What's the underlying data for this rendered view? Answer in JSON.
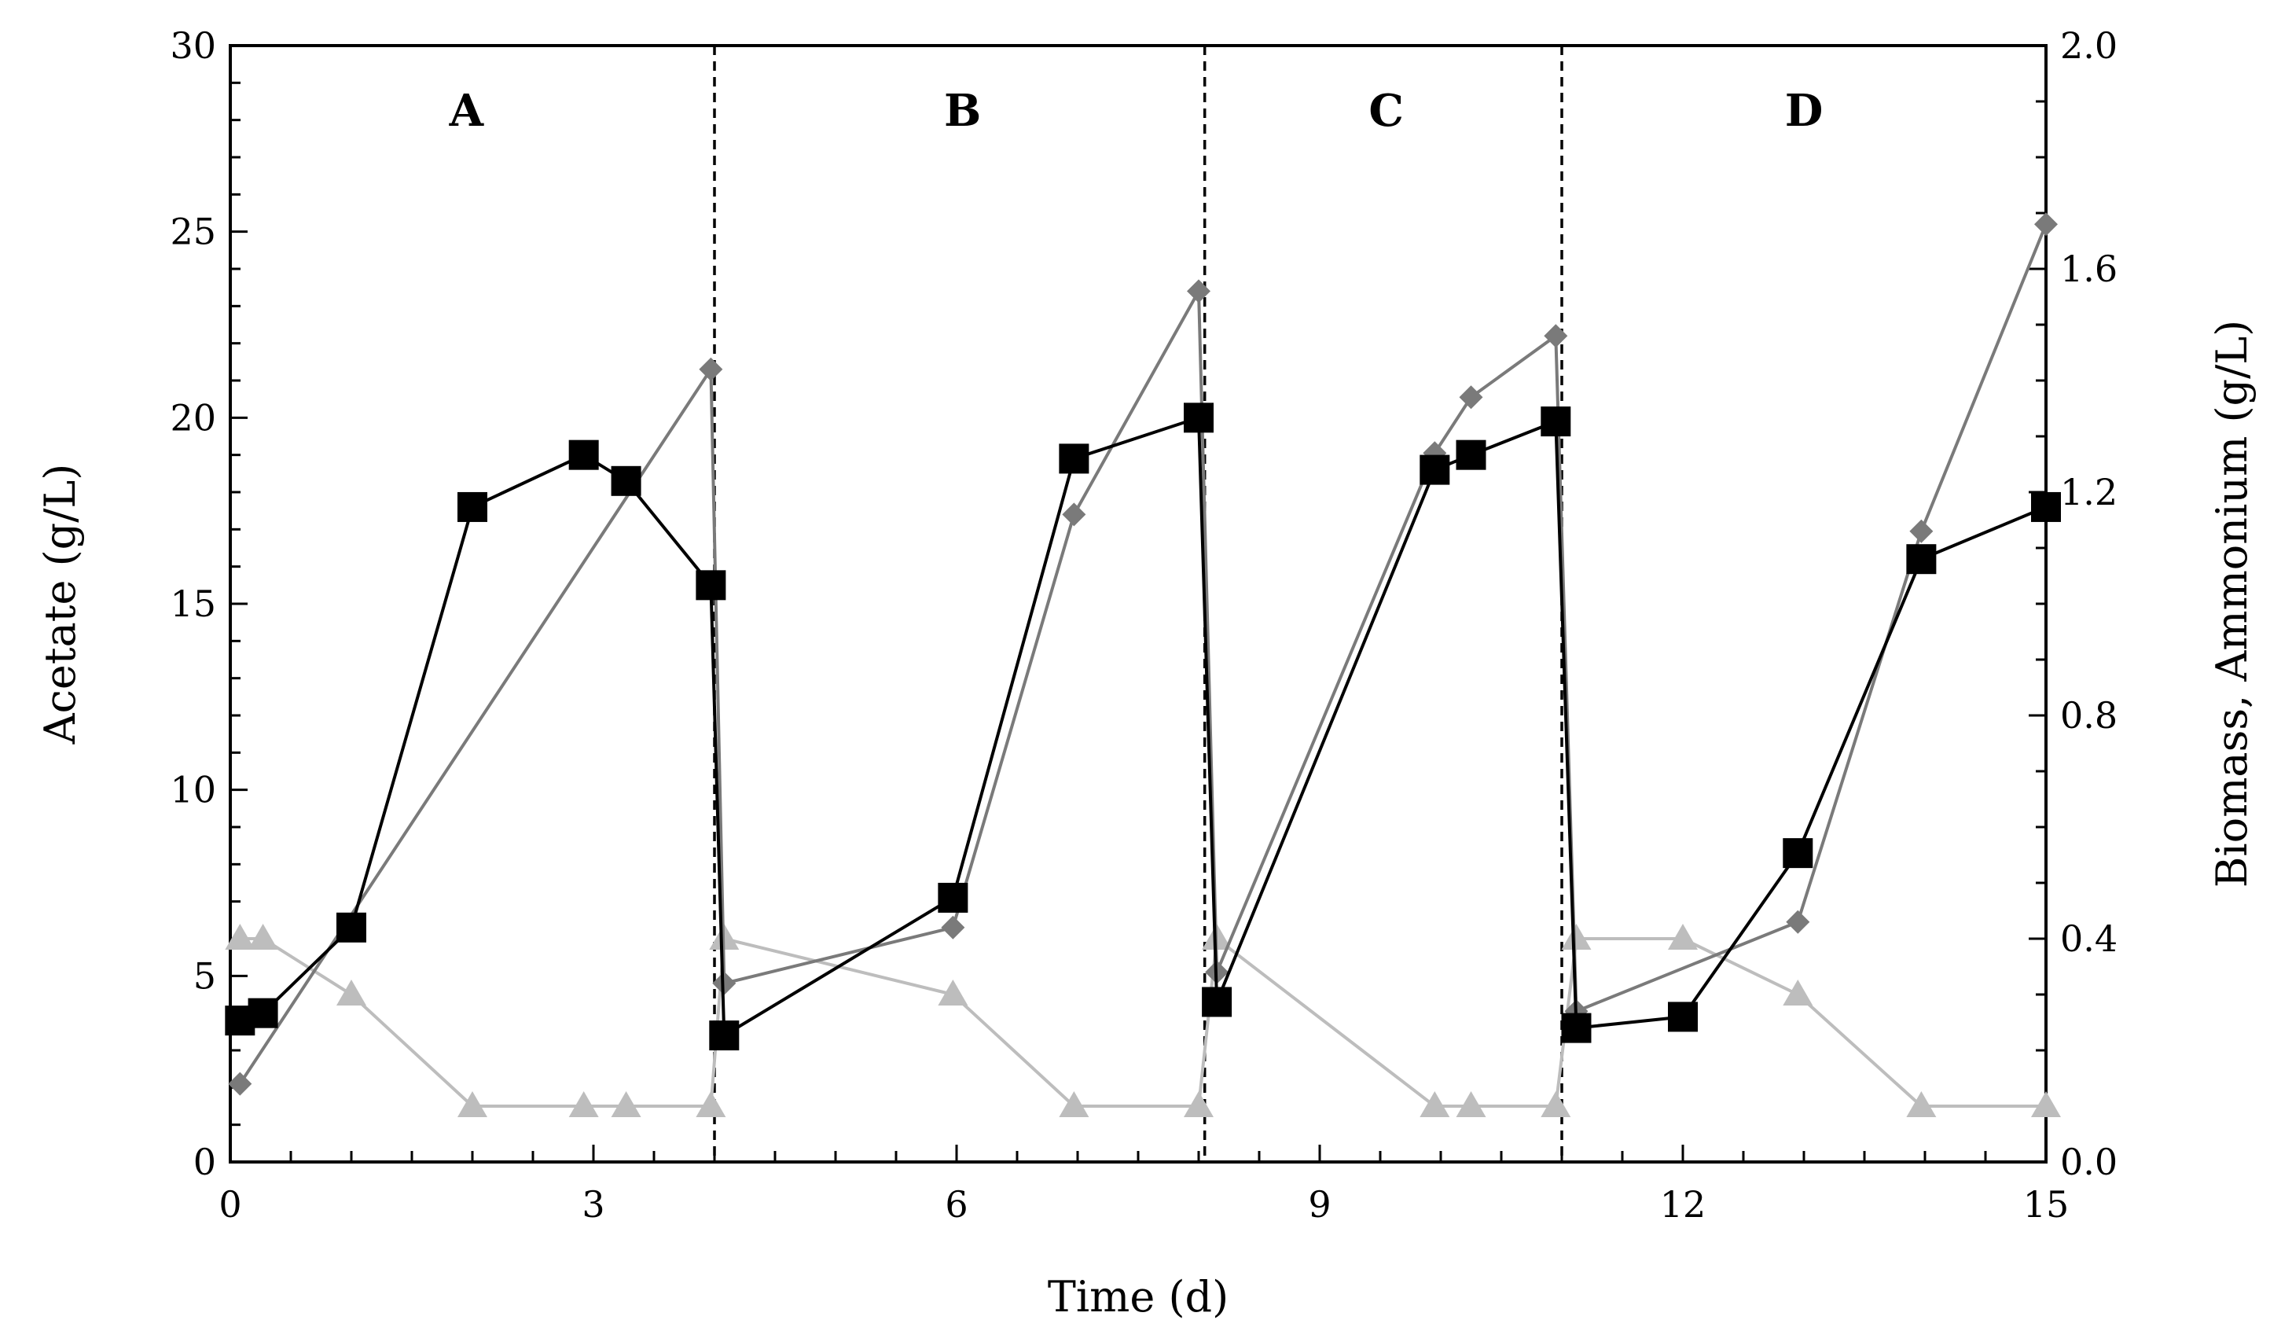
{
  "chart_data": {
    "type": "line",
    "title": "",
    "xlabel": "Time (d)",
    "ylabel": "Acetate (g/L)",
    "y2label": "Biomass, Ammonium (g/L)",
    "xlim": [
      0,
      15
    ],
    "ylim": [
      0,
      30
    ],
    "y2lim": [
      0,
      2
    ],
    "xticks": [
      0,
      3,
      6,
      9,
      12,
      15
    ],
    "xticks_labels": [
      "0",
      "3",
      "6",
      "9",
      "12",
      "15"
    ],
    "yticks": [
      0,
      5,
      10,
      15,
      20,
      25,
      30
    ],
    "yticks_labels": [
      "0",
      "5",
      "10",
      "15",
      "20",
      "25",
      "30"
    ],
    "y2ticks": [
      0,
      0.4,
      0.8,
      1.2,
      1.6,
      2.0
    ],
    "y2ticks_labels": [
      "0.0",
      "0.4",
      "0.8",
      "1.2",
      "1.6",
      "2.0"
    ],
    "grid": false,
    "legend": "none",
    "phase_boundaries": [
      4.0,
      8.05,
      11.0
    ],
    "phases": [
      {
        "label": "A",
        "x": 1.95
      },
      {
        "label": "B",
        "x": 6.05
      },
      {
        "label": "C",
        "x": 9.55
      },
      {
        "label": "D",
        "x": 13.0
      }
    ],
    "series": [
      {
        "name": "Acetate",
        "axis": "left",
        "marker": "square",
        "color": "#000000",
        "x": [
          0.08,
          0.27,
          1.0,
          2.0,
          2.92,
          3.27,
          3.97,
          4.08,
          5.97,
          6.97,
          8.0,
          8.15,
          9.95,
          10.25,
          10.95,
          11.12,
          12.0,
          12.95,
          13.97,
          15.0
        ],
        "y": [
          3.8,
          4.0,
          6.3,
          17.6,
          19.0,
          18.3,
          15.5,
          3.4,
          7.1,
          18.9,
          20.0,
          4.3,
          18.6,
          19.0,
          19.9,
          3.6,
          3.9,
          8.3,
          16.2,
          17.6
        ]
      },
      {
        "name": "Biomass",
        "axis": "right",
        "marker": "diamond",
        "color": "#7a7a7a",
        "x": [
          0.08,
          3.97,
          4.08,
          5.97,
          6.97,
          8.0,
          8.15,
          9.95,
          10.25,
          10.95,
          11.12,
          12.95,
          13.97,
          15.0
        ],
        "y": [
          0.14,
          1.42,
          0.32,
          0.42,
          1.16,
          1.56,
          0.34,
          1.27,
          1.37,
          1.48,
          0.27,
          0.43,
          1.13,
          1.68
        ]
      },
      {
        "name": "Ammonium",
        "axis": "right",
        "marker": "triangle",
        "color": "#bdbdbd",
        "x": [
          0.08,
          0.27,
          1.0,
          2.0,
          2.92,
          3.27,
          3.97,
          4.08,
          5.97,
          6.97,
          8.0,
          8.15,
          9.95,
          10.25,
          10.95,
          11.12,
          12.0,
          12.95,
          13.97,
          15.0
        ],
        "y": [
          0.4,
          0.4,
          0.3,
          0.1,
          0.1,
          0.1,
          0.1,
          0.4,
          0.3,
          0.1,
          0.1,
          0.4,
          0.1,
          0.1,
          0.1,
          0.4,
          0.4,
          0.3,
          0.1,
          0.1
        ]
      }
    ]
  }
}
